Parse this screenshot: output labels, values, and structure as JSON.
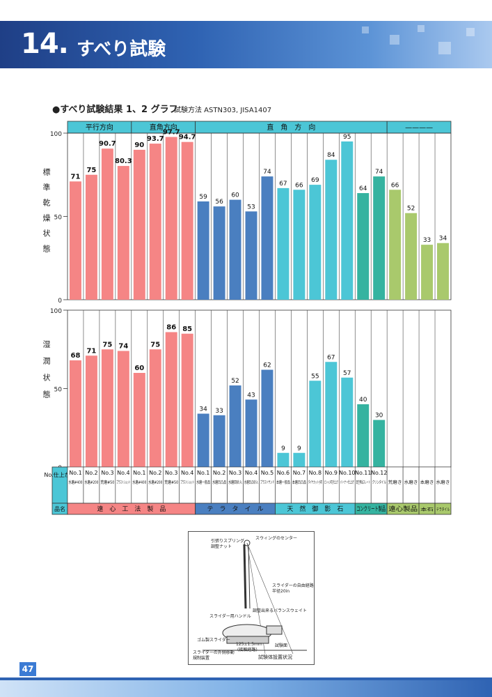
{
  "header": {
    "number": "14.",
    "title": "すべり試験"
  },
  "subtitle": "●すべり試験結果 1、2 グラフ",
  "method": "試験方法 ASTN303, JISA1407",
  "colors": {
    "pink": "#f58585",
    "blue": "#4a7fc0",
    "cyan": "#4cc6d6",
    "teal": "#35b3a0",
    "green": "#a9c96c"
  },
  "chart_data": [
    {
      "type": "bar",
      "ylabel": "標準乾燥状態",
      "ylim": [
        0,
        100
      ],
      "yticks": [
        0,
        50,
        100
      ],
      "values": [
        71,
        75,
        90.7,
        80.3,
        90,
        93.7,
        97.7,
        94.7,
        59,
        56,
        60,
        53,
        74,
        67,
        66,
        69,
        84,
        95,
        64,
        74,
        66,
        52,
        33,
        34
      ],
      "labels": [
        "71",
        "75",
        "90.7",
        "80.3",
        "90",
        "93.7",
        "97.7",
        "94.7",
        "59",
        "56",
        "60",
        "53",
        "74",
        "67",
        "66",
        "69",
        "84",
        "95",
        "64",
        "74",
        "66",
        "52",
        "33",
        "34"
      ]
    },
    {
      "type": "bar",
      "ylabel": "湿潤状態",
      "ylim": [
        0,
        100
      ],
      "yticks": [
        0,
        50,
        100
      ],
      "values": [
        68,
        71,
        75,
        74,
        60,
        75,
        86,
        85,
        34,
        33,
        52,
        43,
        62,
        9,
        9,
        55,
        67,
        57,
        40,
        30,
        null,
        null,
        null,
        null
      ],
      "labels": [
        "68",
        "71",
        "75",
        "74",
        "60",
        "75",
        "86",
        "85",
        "34",
        "33",
        "52",
        "43",
        "62",
        "9",
        "9",
        "55",
        "67",
        "57",
        "40",
        "30",
        "",
        "",
        "",
        ""
      ]
    }
  ],
  "column_groups": [
    {
      "label": "平行方向",
      "span": 4
    },
    {
      "label": "直角方向",
      "span": 4
    },
    {
      "label": "直　角　方　向",
      "span": 12
    },
    {
      "label": "————",
      "span": 4
    }
  ],
  "bar_color_keys": [
    "pink",
    "pink",
    "pink",
    "pink",
    "pink",
    "pink",
    "pink",
    "pink",
    "blue",
    "blue",
    "blue",
    "blue",
    "blue",
    "cyan",
    "cyan",
    "cyan",
    "cyan",
    "cyan",
    "teal",
    "teal",
    "green",
    "green",
    "green",
    "green"
  ],
  "row_header": "No.仕上がり",
  "columns": [
    {
      "no": "No.1",
      "finish": "水磨#400"
    },
    {
      "no": "No.2",
      "finish": "水磨#200"
    },
    {
      "no": "No.3",
      "finish": "荒磨#50"
    },
    {
      "no": "No.4",
      "finish": "ブラストショット"
    },
    {
      "no": "No.1",
      "finish": "水磨#400"
    },
    {
      "no": "No.2",
      "finish": "水磨#200"
    },
    {
      "no": "No.3",
      "finish": "荒磨#50"
    },
    {
      "no": "No.4",
      "finish": "ブラストショット"
    },
    {
      "no": "No.1",
      "finish": "水磨一般品"
    },
    {
      "no": "No.2",
      "finish": "水磨凹凸品"
    },
    {
      "no": "No.3",
      "finish": "水磨目砂入"
    },
    {
      "no": "No.4",
      "finish": "水磨凹凸砂入"
    },
    {
      "no": "No.5",
      "finish": "ブラストサンド"
    },
    {
      "no": "No.6",
      "finish": "本磨一般品"
    },
    {
      "no": "No.7",
      "finish": "本磨凹凸品"
    },
    {
      "no": "No.8",
      "finish": "ダイヤカット小叩"
    },
    {
      "no": "No.9",
      "finish": "ビシャン叩き仕上げ"
    },
    {
      "no": "No.10",
      "finish": "バーナー仕上げ"
    },
    {
      "no": "No.11",
      "finish": "真空押出スレート"
    },
    {
      "no": "No.12",
      "finish": "クリンタイル"
    },
    {
      "no": "",
      "finish": "荒磨き"
    },
    {
      "no": "",
      "finish": "水磨き"
    },
    {
      "no": "",
      "finish": "本磨き"
    },
    {
      "no": "",
      "finish": "水磨き"
    }
  ],
  "product_header": "品名",
  "products": [
    {
      "label": "遠　心　工　法　製　品",
      "span": 8,
      "color": "#f58585"
    },
    {
      "label": "テ　ラ　タ　イ　ル",
      "span": 5,
      "color": "#4a7fc0"
    },
    {
      "label": "天　然　御　影　石",
      "span": 5,
      "color": "#4cc6d6"
    },
    {
      "label": "コンクリート製品",
      "span": 2,
      "color": "#35b3a0"
    },
    {
      "label": "遠心製品",
      "span": 2,
      "color": "#a9c96c"
    },
    {
      "label": "本石",
      "span": 1,
      "color": "#a9c96c"
    },
    {
      "label": "テラタイル",
      "span": 1,
      "color": "#a9c96c"
    }
  ],
  "diagram": {
    "labels": [
      "引張りスプリング",
      "調整ナット",
      "スウィングのセンター",
      "スライダーの自由経路",
      "半径20in",
      "調整出来るバランスウェイト",
      "スライダー用ハンドル",
      "ゴム製スライダー",
      "125±1.5mm",
      "(接触経路)",
      "試験面",
      "スライダーの外側移動",
      "規制装置"
    ],
    "caption": "試験体設置状況"
  },
  "page_number": "47"
}
